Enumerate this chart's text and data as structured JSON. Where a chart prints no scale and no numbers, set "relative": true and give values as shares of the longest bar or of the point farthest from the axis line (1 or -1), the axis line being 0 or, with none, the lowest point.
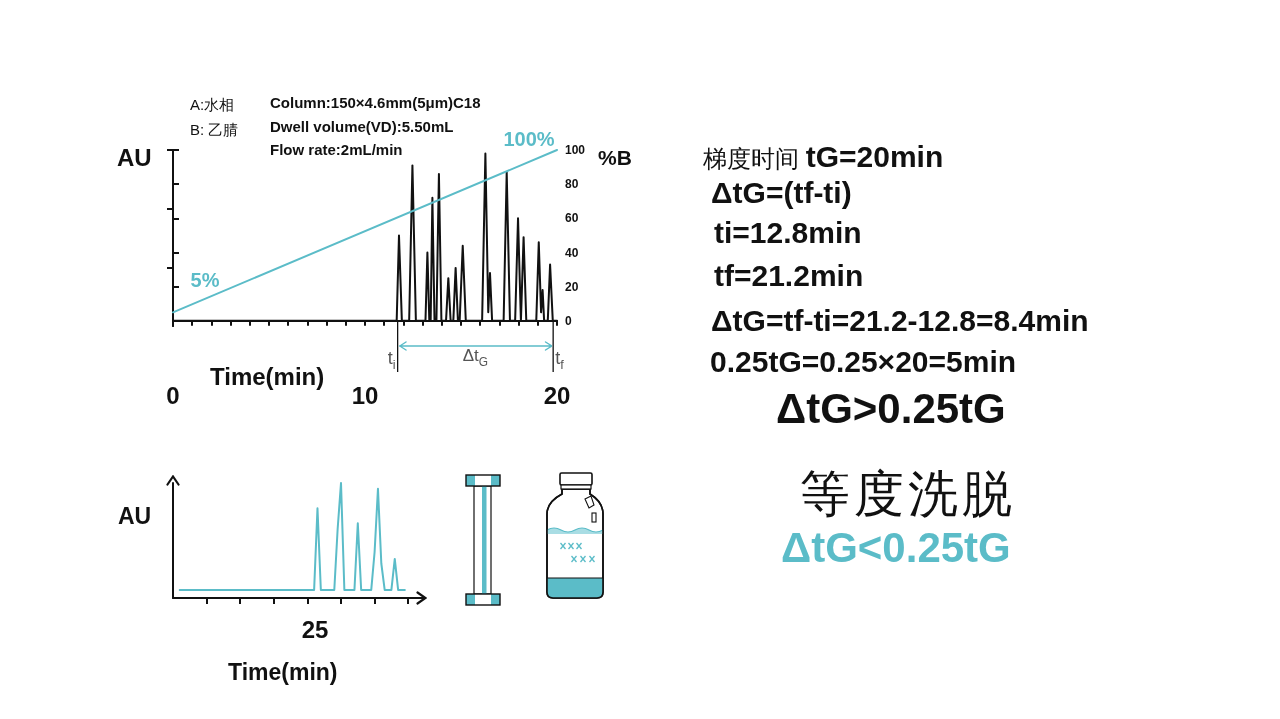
{
  "chart_data": [
    {
      "type": "line",
      "xlabel": "Time(min)",
      "ylabel": "%B",
      "xlim": [
        0,
        20
      ],
      "xticks": [
        0,
        {
          "value": 1,
          "label": null
        },
        {
          "value": 2,
          "label": null
        },
        {
          "value": 3,
          "label": null
        },
        {
          "value": 4,
          "label": null
        },
        {
          "value": 5,
          "label": null
        },
        {
          "value": 6,
          "label": null
        },
        {
          "value": 7,
          "label": null
        },
        {
          "value": 8,
          "label": null
        },
        {
          "value": 9,
          "label": null
        },
        10,
        {
          "value": 11,
          "label": null
        },
        {
          "value": 12,
          "label": null
        },
        {
          "value": 13,
          "label": null
        },
        {
          "value": 14,
          "label": null
        },
        {
          "value": 15,
          "label": null
        },
        {
          "value": 16,
          "label": null
        },
        {
          "value": 17,
          "label": null
        },
        {
          "value": 18,
          "label": null
        },
        {
          "value": 19,
          "label": null
        },
        20
      ],
      "ylim": [
        -3,
        100
      ],
      "yticks": [
        0,
        20,
        40,
        60,
        80,
        100
      ],
      "marker": "none",
      "series": [
        {
          "color": "#111111",
          "x": [
            0,
            11.65,
            11.77,
            11.92,
            12.3,
            12.47,
            12.65,
            13.15,
            13.25,
            13.35,
            13.42,
            13.51,
            13.62,
            13.72,
            13.85,
            13.98,
            14.22,
            14.34,
            14.46,
            14.6,
            14.72,
            14.84,
            14.93,
            15.09,
            15.25,
            16.1,
            16.27,
            16.42,
            16.51,
            16.62,
            17.22,
            17.38,
            17.55,
            17.82,
            17.97,
            18.12,
            18.26,
            18.4,
            18.92,
            19.05,
            19.17,
            19.25,
            19.33,
            19.52,
            19.64,
            19.78,
            20
          ],
          "values": [
            0,
            0,
            50,
            0,
            0,
            91,
            0,
            0,
            40,
            0,
            0,
            72,
            0,
            0,
            86,
            0,
            0,
            25,
            0,
            0,
            31,
            0,
            0,
            44,
            0,
            0,
            98,
            5,
            28,
            0,
            0,
            87,
            0,
            0,
            60,
            0,
            49,
            0,
            0,
            46,
            5,
            18,
            0,
            0,
            33,
            0,
            0
          ]
        },
        {
          "color": "#5bbcc8",
          "x": [
            0,
            20
          ],
          "values": [
            5,
            100
          ],
          "value_labels": [
            "5%",
            "100%"
          ]
        }
      ],
      "ref_lines": [
        {
          "axis": "x",
          "value": 11.7,
          "label": "t$_{i}$"
        },
        {
          "axis": "x",
          "value": 19.8,
          "label": "t$_{f}$"
        }
      ],
      "annotations": [
        "A:水相",
        "B: 乙腈",
        "Column:150×4.6mm(5μm)C18",
        "Dwell volume(VD):5.50mL",
        "Flow rate:2mL/min",
        "AU",
        "Δt$_{G}$",
        "梯度时间 tG=20min",
        "ΔtG=(tf-ti)",
        "ti=12.8min",
        "tf=21.2min",
        "ΔtG=tf-ti=21.2-12.8=8.4min",
        "0.25tG=0.25×20=5min",
        "ΔtG>0.25tG"
      ]
    },
    {
      "type": "line",
      "relative": true,
      "xlabel": "Time(min)",
      "ylabel": "AU",
      "marker": "none",
      "categories": [
        null,
        null,
        null,
        null,
        null,
        null,
        null,
        null,
        null,
        null,
        null,
        null,
        null,
        null,
        null,
        null,
        null,
        null,
        null,
        null,
        null,
        null,
        null,
        null,
        null,
        null,
        null,
        null,
        null,
        null,
        null,
        null,
        null,
        null,
        null,
        null,
        null,
        null,
        null,
        null,
        null,
        null,
        null,
        null,
        null,
        null,
        null,
        null,
        null,
        null,
        null,
        null,
        null,
        null,
        null,
        null,
        null,
        null,
        null,
        null,
        null,
        null,
        null,
        null,
        null,
        null,
        null,
        null,
        null,
        null,
        null,
        null,
        null,
        null,
        null,
        null
      ],
      "series": [
        {
          "color": "#5bbcc8",
          "values": [
            null,
            null,
            0.07,
            0.07,
            0.07,
            0.07,
            0.07,
            0.07,
            0.07,
            0.07,
            0.07,
            0.07,
            0.07,
            0.07,
            0.07,
            0.07,
            0.07,
            0.07,
            0.07,
            0.07,
            0.07,
            0.07,
            0.07,
            0.07,
            0.07,
            0.07,
            0.07,
            0.07,
            0.07,
            0.07,
            0.07,
            0.07,
            0.07,
            0.07,
            0.07,
            0.07,
            0.07,
            0.07,
            0.07,
            0.07,
            0.07,
            0.07,
            0.07,
            0.78,
            0.07,
            0.07,
            0.07,
            0.07,
            0.07,
            0.6,
            1,
            0.07,
            0.07,
            0.07,
            0.07,
            0.65,
            0.07,
            0.07,
            0.07,
            0.07,
            0.4,
            0.95,
            0.3,
            0.07,
            0.07,
            0.07,
            0.34,
            0.07,
            0.07,
            0.07,
            null,
            null,
            null,
            null,
            null,
            null
          ]
        }
      ],
      "annotations": [
        "25",
        "等度洗脱",
        "ΔtG<0.25tG"
      ]
    }
  ]
}
